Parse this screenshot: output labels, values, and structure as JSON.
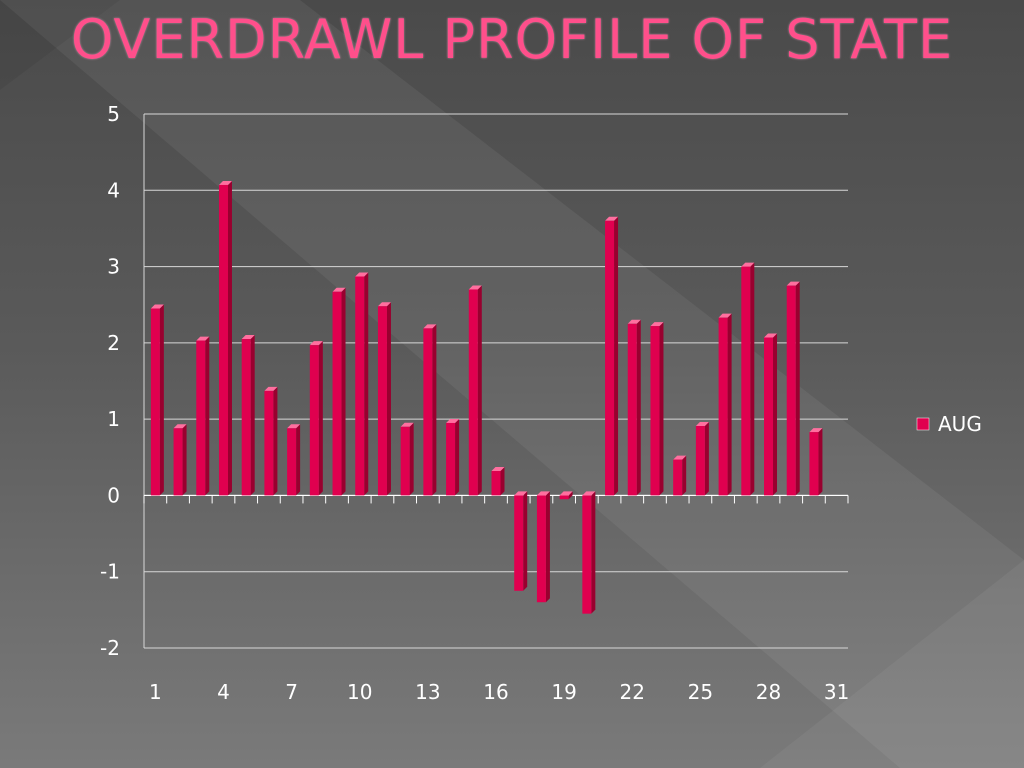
{
  "slide": {
    "title": "OVERDRAWL PROFILE OF STATE"
  },
  "colors": {
    "title": "#ff4f8b",
    "bar_front": "#e0004f",
    "bar_side": "#99002f",
    "bar_top": "#ff6f9f"
  },
  "chart_data": {
    "type": "bar",
    "title": "",
    "xlabel": "",
    "ylabel": "",
    "ylim": [
      -2,
      5
    ],
    "yticks": [
      "5",
      "4",
      "3",
      "2",
      "1",
      "0",
      "-1",
      "-2"
    ],
    "xtick_labels": [
      "1",
      "4",
      "7",
      "10",
      "13",
      "16",
      "19",
      "22",
      "25",
      "28",
      "31"
    ],
    "legend_position": "right",
    "grid": true,
    "categories": [
      "1",
      "2",
      "3",
      "4",
      "5",
      "6",
      "7",
      "8",
      "9",
      "10",
      "11",
      "12",
      "13",
      "14",
      "15",
      "16",
      "17",
      "18",
      "19",
      "20",
      "21",
      "22",
      "23",
      "24",
      "25",
      "26",
      "27",
      "28",
      "29",
      "30",
      "31"
    ],
    "series": [
      {
        "name": "AUG",
        "values": [
          2.45,
          0.88,
          2.03,
          4.07,
          2.05,
          1.37,
          0.88,
          1.97,
          2.67,
          2.87,
          2.48,
          0.9,
          2.19,
          0.95,
          2.7,
          0.32,
          -1.25,
          -1.4,
          -0.05,
          -1.55,
          3.6,
          2.25,
          2.22,
          0.47,
          0.91,
          2.33,
          3.0,
          2.07,
          2.75,
          0.83,
          null
        ]
      }
    ]
  }
}
